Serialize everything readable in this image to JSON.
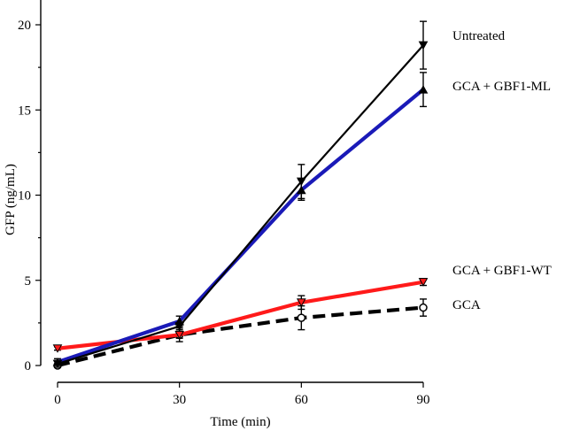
{
  "chart_data": {
    "type": "line",
    "xlabel": "Time (min)",
    "ylabel": "GFP (ng/mL)",
    "xlim": [
      0,
      90
    ],
    "ylim": [
      0,
      22
    ],
    "x_ticks": [
      "0",
      "30",
      "60",
      "90"
    ],
    "y_ticks": [
      "0",
      "5",
      "10",
      "15",
      "20"
    ],
    "x": [
      0,
      30,
      60,
      90
    ],
    "grid": false,
    "legend": "direct labels at right",
    "series": [
      {
        "name": "Untreated",
        "color": "#000000",
        "marker": "triangle-down",
        "style": "solid-thin",
        "values": [
          0.1,
          2.3,
          10.8,
          18.8
        ],
        "errors": [
          0.2,
          0.2,
          1.0,
          1.4
        ]
      },
      {
        "name": "GCA + GBF1-ML",
        "color": "#1a1ab8",
        "marker": "triangle-up",
        "style": "solid-thick",
        "values": [
          0.2,
          2.6,
          10.3,
          16.2
        ],
        "errors": [
          0.2,
          0.3,
          0.6,
          1.0
        ]
      },
      {
        "name": "GCA + GBF1-WT",
        "color": "#ff1a1a",
        "marker": "triangle-down-red",
        "style": "solid-thick",
        "values": [
          1.0,
          1.8,
          3.7,
          4.9
        ],
        "errors": [
          0.1,
          0.2,
          0.4,
          0.2
        ]
      },
      {
        "name": "GCA",
        "color": "#000000",
        "marker": "circle-open",
        "style": "dashed-thick",
        "values": [
          0.0,
          1.8,
          2.8,
          3.4
        ],
        "errors": [
          0.1,
          0.4,
          0.7,
          0.5
        ]
      }
    ]
  }
}
